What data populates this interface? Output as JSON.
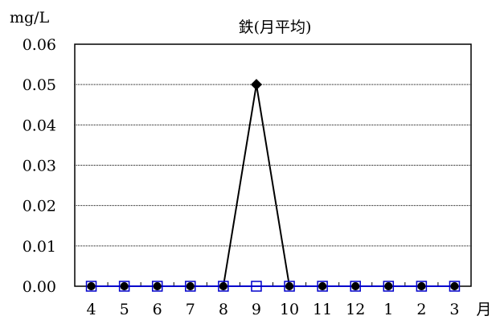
{
  "chart_data": {
    "type": "line",
    "title": "鉄(月平均)",
    "ylabel": "mg/L",
    "xlabel": "月",
    "categories": [
      "4",
      "5",
      "6",
      "7",
      "8",
      "9",
      "10",
      "11",
      "12",
      "1",
      "2",
      "3"
    ],
    "ylim": [
      0,
      0.06
    ],
    "yticks": [
      "0.00",
      "0.01",
      "0.02",
      "0.03",
      "0.04",
      "0.05",
      "0.06"
    ],
    "grid": true,
    "legend": "none",
    "series": [
      {
        "values": [
          0,
          0,
          0,
          0,
          0,
          0.05,
          0,
          0,
          0,
          0,
          0,
          0
        ],
        "color": "#000000",
        "marker": "diamond"
      },
      {
        "values": [
          0,
          0,
          0,
          0,
          0,
          0,
          0,
          0,
          0,
          0,
          0,
          0
        ],
        "color": "#0000cc",
        "marker": "square-open"
      }
    ]
  }
}
